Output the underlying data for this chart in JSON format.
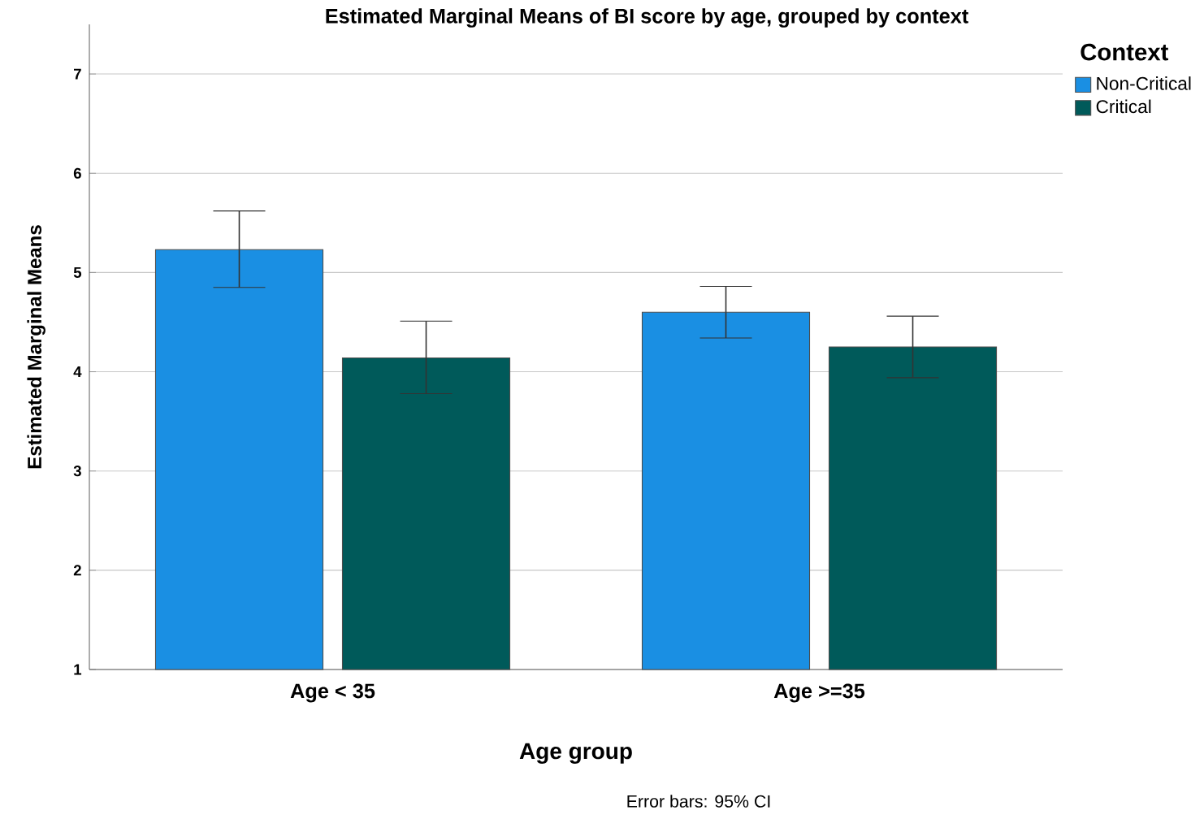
{
  "chart_data": {
    "type": "bar",
    "title": "Estimated Marginal Means of BI score by age, grouped by context",
    "xlabel": "Age group",
    "ylabel": "Estimated Marginal Means",
    "legend_title": "Context",
    "categories": [
      "Age < 35",
      "Age >=35"
    ],
    "series": [
      {
        "name": "Non-Critical",
        "color": "#1a8fe3",
        "values": [
          5.23,
          4.6
        ],
        "errors": [
          [
            4.85,
            5.62
          ],
          [
            4.34,
            4.86
          ]
        ]
      },
      {
        "name": "Critical",
        "color": "#005a5a",
        "values": [
          4.14,
          4.25
        ],
        "errors": [
          [
            3.78,
            4.51
          ],
          [
            3.94,
            4.56
          ]
        ]
      }
    ],
    "ylim": [
      1,
      7.5
    ],
    "yticks": [
      1,
      2,
      3,
      4,
      5,
      6,
      7
    ],
    "grid": "y",
    "legend": "top right",
    "annotations": [
      "Error bars: 95% CI"
    ]
  }
}
